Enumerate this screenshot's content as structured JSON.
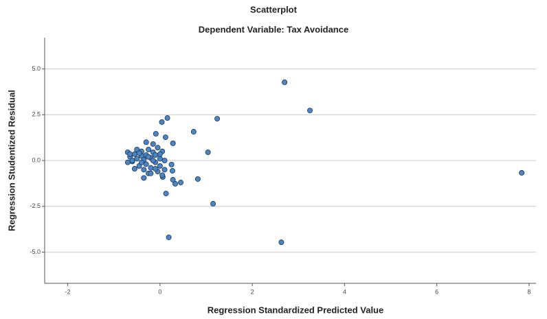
{
  "chart_data": {
    "type": "scatter",
    "title": "Scatterplot",
    "subtitle": "Dependent Variable: Tax Avoidance",
    "x_label": "Regression Standardized Predicted Value",
    "y_label": "Regression Studentized Residual",
    "color": "#4a86c5",
    "grid": true,
    "xlim": [
      -2.5,
      8.15
    ],
    "ylim": [
      -6.7,
      6.7
    ],
    "xticks": [
      -2,
      0,
      2,
      4,
      6,
      8
    ],
    "yticks": [
      {
        "value": 5,
        "label": "5.0"
      },
      {
        "value": 2.5,
        "label": "2.5"
      },
      {
        "value": 0,
        "label": "0.0"
      },
      -2.5,
      {
        "value": -5,
        "label": "-5.0"
      }
    ],
    "x": [
      2.7,
      3.25,
      7.84,
      2.63,
      0.19,
      1.15,
      1.24,
      0.73,
      0.16,
      0.04,
      1.04,
      0.82,
      0.13,
      0.28,
      0.12,
      -0.09,
      0.45,
      0.33,
      0.28,
      0.25,
      0.27,
      0.06,
      -0.7,
      -0.65,
      -0.6,
      -0.55,
      -0.5,
      -0.5,
      -0.45,
      -0.4,
      -0.4,
      -0.35,
      -0.35,
      -0.3,
      -0.3,
      -0.3,
      -0.25,
      -0.25,
      -0.2,
      -0.2,
      -0.15,
      -0.15,
      -0.1,
      -0.1,
      -0.05,
      -0.05,
      0.0,
      0.0,
      0.05,
      0.05,
      0.1,
      0.1,
      -0.6,
      -0.7,
      -0.45,
      -0.35,
      -0.2,
      -0.15,
      0.0,
      -0.55,
      -0.65,
      -0.25,
      -0.1,
      -0.4
    ],
    "values": [
      4.27,
      2.73,
      -0.67,
      -4.46,
      -4.19,
      -2.36,
      2.28,
      1.57,
      2.32,
      2.1,
      0.45,
      -1.01,
      -1.8,
      0.94,
      1.27,
      1.46,
      -1.2,
      -1.27,
      -1.05,
      -0.22,
      -0.56,
      -0.9,
      0.45,
      0.2,
      -0.05,
      0.35,
      0.6,
      0.1,
      -0.3,
      0.5,
      0.25,
      -0.5,
      0.05,
      1.0,
      0.3,
      -0.2,
      0.6,
      -0.7,
      0.15,
      -0.4,
      0.45,
      0.9,
      -0.1,
      0.3,
      -0.6,
      0.7,
      0.1,
      -0.3,
      0.5,
      -0.8,
      0.0,
      -0.5,
      0.0,
      -0.1,
      0.4,
      -0.95,
      -0.7,
      0.0,
      0.35,
      -0.45,
      0.35,
      0.2,
      -0.45,
      -0.1
    ]
  }
}
